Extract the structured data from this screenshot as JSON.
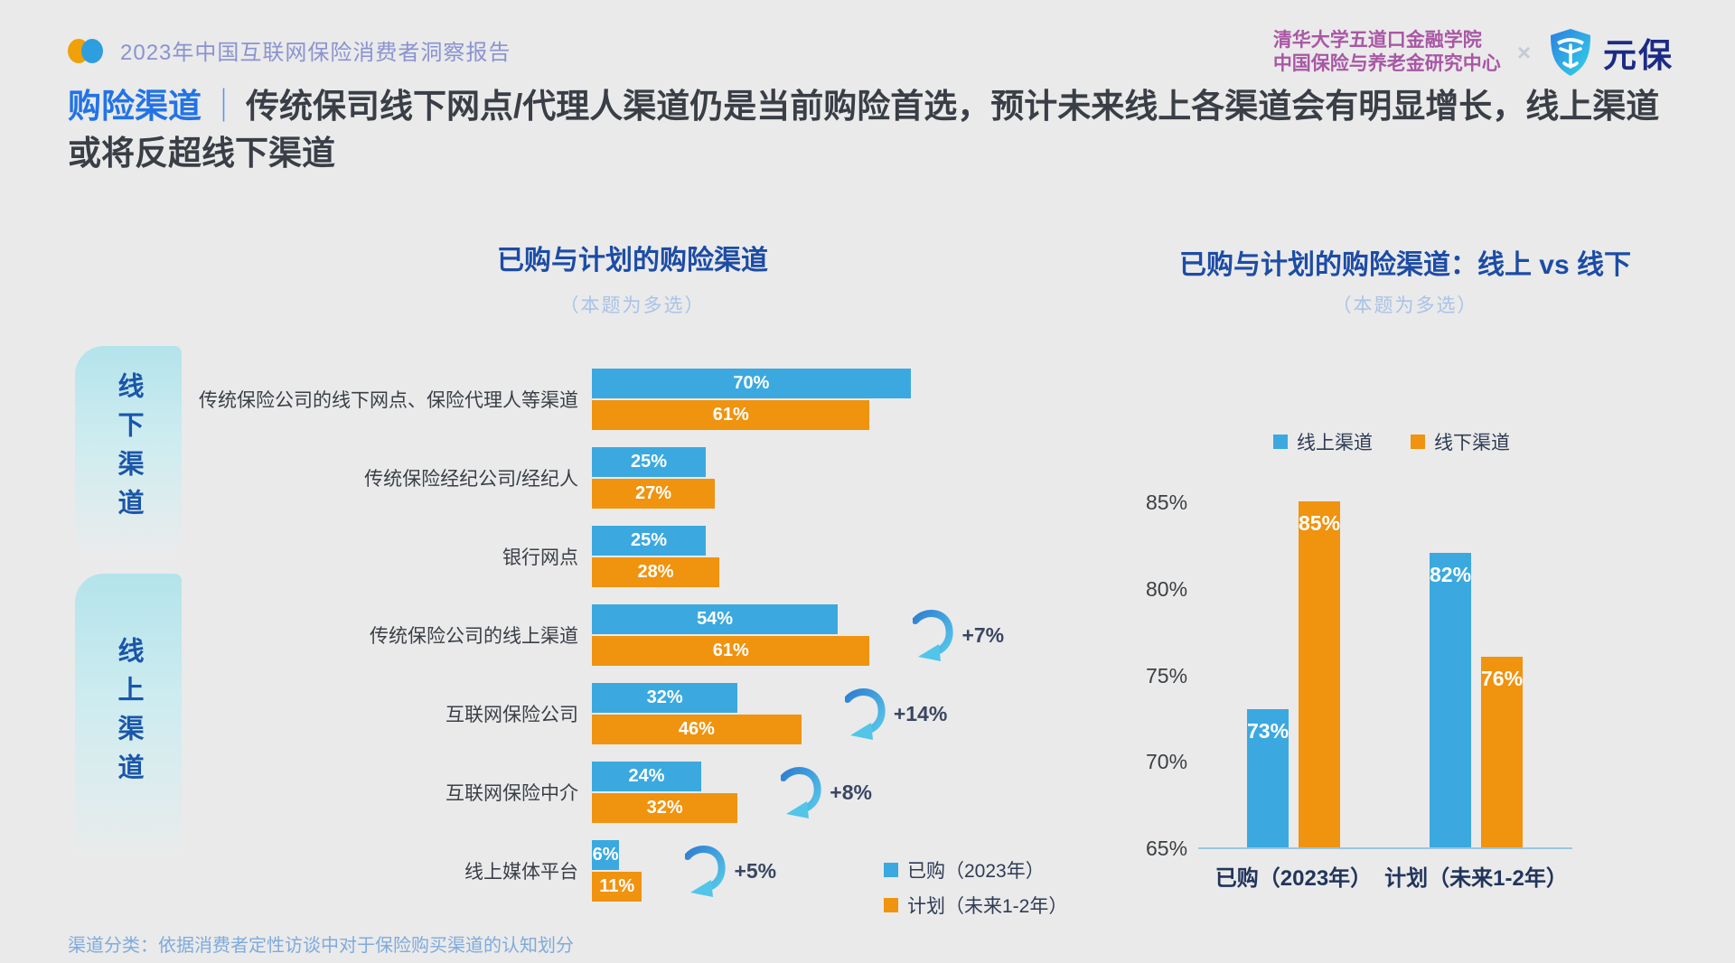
{
  "meta": {
    "report_title": "2023年中国互联网保险消费者洞察报告",
    "org_line1": "清华大学五道口金融学院",
    "org_line2": "中国保险与养老金研究中心",
    "cross": "×",
    "brand": "元保"
  },
  "headline": {
    "prefix": "购险渠道",
    "separator": "｜",
    "text": "传统保司线下网点/代理人渠道仍是当前购险首选，预计未来线上各渠道会有明显增长，线上渠道或将反超线下渠道"
  },
  "left_chart": {
    "title": "已购与计划的购险渠道",
    "subtitle": "（本题为多选）",
    "side_labels": {
      "offline": "线下渠道",
      "online": "线上渠道"
    }
  },
  "right_chart": {
    "title": "已购与计划的购险渠道：线上 vs 线下",
    "subtitle": "（本题为多选）"
  },
  "footnote": "渠道分类：依据消费者定性访谈中对于保险购买渠道的认知划分",
  "colors": {
    "purchased_blue": "#3ba9df",
    "planned_orange": "#f0930f",
    "arrow_dark": "#2f7fd1",
    "arrow_light": "#56c8ea"
  },
  "chart_data": [
    {
      "type": "bar",
      "orientation": "horizontal",
      "title": "已购与计划的购险渠道",
      "subtitle": "（本题为多选）",
      "note": "percent values, multi-select question",
      "categories": [
        "传统保险公司的线下网点、保险代理人等渠道",
        "传统保险经纪公司/经纪人",
        "银行网点",
        "传统保险公司的线上渠道",
        "互联网保险公司",
        "互联网保险中介",
        "线上媒体平台"
      ],
      "group_labels": {
        "offline_rows": [
          0,
          1,
          2
        ],
        "online_rows": [
          3,
          4,
          5,
          6
        ]
      },
      "series": [
        {
          "name": "已购（2023年）",
          "color": "#3ba9df",
          "values": [
            70,
            25,
            25,
            54,
            32,
            24,
            6
          ]
        },
        {
          "name": "计划（未来1-2年）",
          "color": "#f0930f",
          "values": [
            61,
            27,
            28,
            61,
            46,
            32,
            11
          ]
        }
      ],
      "deltas": [
        "",
        "",
        "",
        "+7%",
        "+14%",
        "+8%",
        "+5%"
      ],
      "xlim": [
        0,
        100
      ],
      "value_suffix": "%"
    },
    {
      "type": "bar",
      "orientation": "vertical",
      "title": "已购与计划的购险渠道：线上 vs 线下",
      "subtitle": "（本题为多选）",
      "categories": [
        "已购（2023年）",
        "计划（未来1-2年）"
      ],
      "series": [
        {
          "name": "线上渠道",
          "color": "#3ba9df",
          "values": [
            73,
            82
          ]
        },
        {
          "name": "线下渠道",
          "color": "#f0930f",
          "values": [
            85,
            76
          ]
        }
      ],
      "ylim": [
        65,
        85
      ],
      "yticks": [
        85,
        80,
        75,
        70,
        65
      ],
      "value_suffix": "%",
      "legend_position": "top",
      "grid": false
    }
  ]
}
